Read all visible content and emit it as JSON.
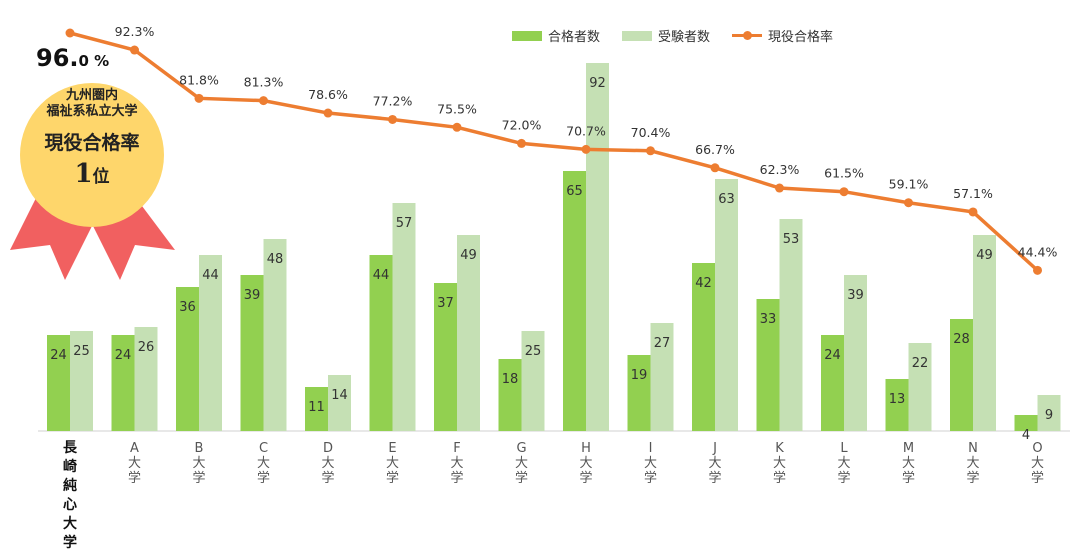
{
  "chart_data": {
    "type": "bar",
    "categories": [
      "長崎純心大学",
      "A大学",
      "B大学",
      "C大学",
      "D大学",
      "E大学",
      "F大学",
      "G大学",
      "H大学",
      "I大学",
      "J大学",
      "K大学",
      "L大学",
      "M大学",
      "N大学",
      "O大学"
    ],
    "series": [
      {
        "name": "合格者数",
        "type": "bar",
        "color": "#92d050",
        "values": [
          24,
          24,
          36,
          39,
          11,
          44,
          37,
          18,
          65,
          19,
          42,
          33,
          24,
          13,
          28,
          4
        ]
      },
      {
        "name": "受験者数",
        "type": "bar",
        "color": "#c5e0b4",
        "values": [
          25,
          26,
          44,
          48,
          14,
          57,
          49,
          25,
          92,
          27,
          63,
          53,
          39,
          22,
          49,
          9
        ]
      },
      {
        "name": "現役合格率",
        "type": "line",
        "color": "#ed7d31",
        "values": [
          96.0,
          92.3,
          81.8,
          81.3,
          78.6,
          77.2,
          75.5,
          72.0,
          70.7,
          70.4,
          66.7,
          62.3,
          61.5,
          59.1,
          57.1,
          44.4
        ],
        "labels": [
          "",
          "92.3%",
          "81.8%",
          "81.3%",
          "78.6%",
          "77.2%",
          "75.5%",
          "72.0%",
          "70.7%",
          "70.4%",
          "66.7%",
          "62.3%",
          "61.5%",
          "59.1%",
          "57.1%",
          "44.4%"
        ]
      }
    ],
    "grid": false,
    "legend": "top-right"
  },
  "badge": {
    "percent_main": "96.",
    "percent_small": "0 %",
    "line1": "九州圏内",
    "line2": "福祉系私立大学",
    "line3": "現役合格率",
    "rank_num": "1",
    "rank_unit": "位"
  },
  "colors": {
    "bar_pass": "#92d050",
    "bar_exam": "#c5e0b4",
    "line": "#ed7d31",
    "medal": "#fed66b",
    "ribbon": "#f16060"
  }
}
